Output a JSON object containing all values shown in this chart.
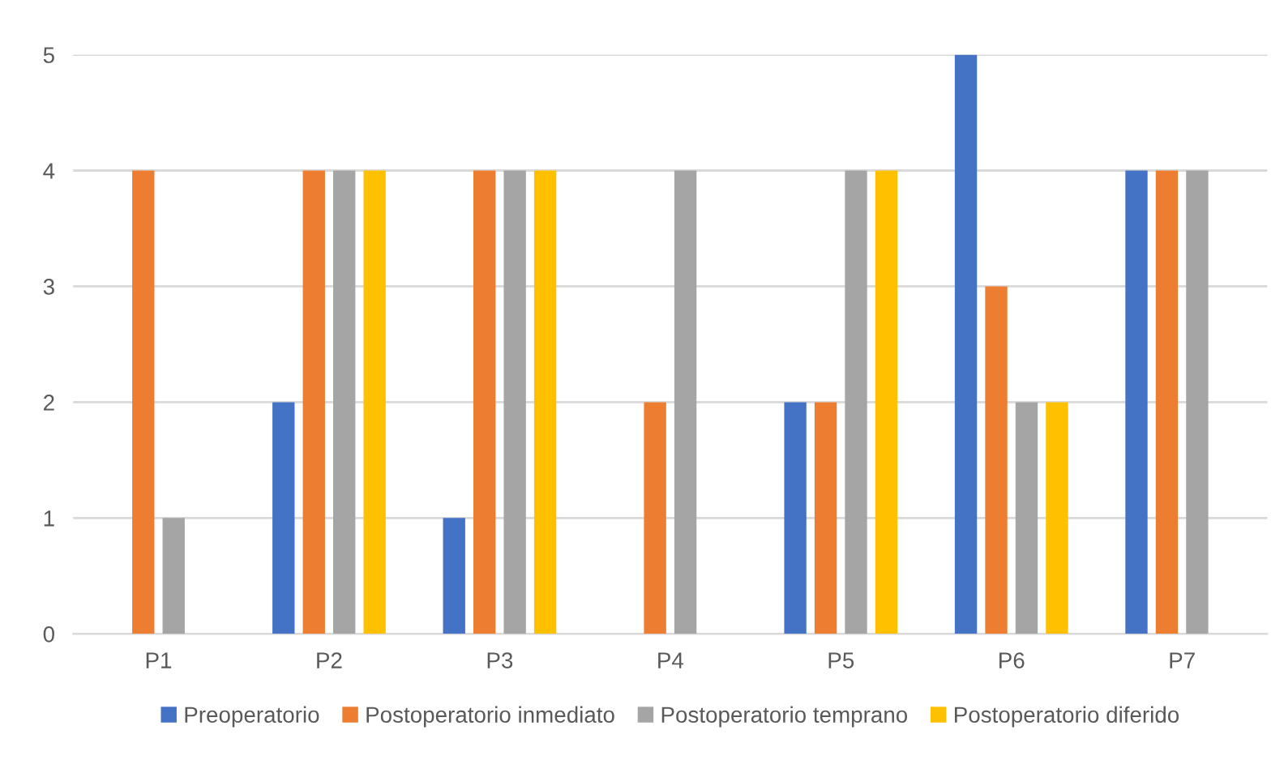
{
  "chart_data": {
    "type": "bar",
    "categories": [
      "P1",
      "P2",
      "P3",
      "P4",
      "P5",
      "P6",
      "P7"
    ],
    "series": [
      {
        "name": "Preoperatorio",
        "color": "#4472c4",
        "values": [
          0,
          2,
          1,
          0,
          2,
          5,
          4
        ]
      },
      {
        "name": "Postoperatorio inmediato",
        "color": "#ed7d31",
        "values": [
          4,
          4,
          4,
          2,
          2,
          3,
          4
        ]
      },
      {
        "name": "Postoperatorio temprano",
        "color": "#a5a5a5",
        "values": [
          1,
          4,
          4,
          4,
          4,
          2,
          4
        ]
      },
      {
        "name": "Postoperatorio diferido",
        "color": "#ffc000",
        "values": [
          0,
          4,
          4,
          0,
          4,
          2,
          0
        ]
      }
    ],
    "ylim": [
      0,
      5
    ],
    "yticks": [
      0,
      1,
      2,
      3,
      4,
      5
    ],
    "grid": "y",
    "legend": "bottom"
  }
}
